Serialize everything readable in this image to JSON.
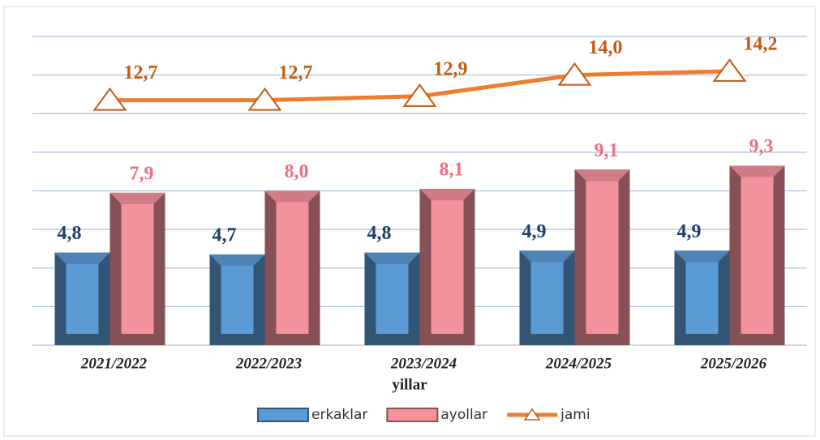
{
  "chart_data": {
    "type": "bar",
    "x_label": "yillar",
    "categories": [
      "2021/2022",
      "2022/2023",
      "2023/2024",
      "2024/2025",
      "2025/2026"
    ],
    "series": [
      {
        "name": "erkaklar",
        "type": "bar",
        "color": "#5b9bd5",
        "label_color": "#1f3e6b",
        "values": [
          4.8,
          4.7,
          4.8,
          4.9,
          4.9
        ],
        "value_labels": [
          "4,8",
          "4,7",
          "4,8",
          "4,9",
          "4,9"
        ]
      },
      {
        "name": "ayollar",
        "type": "bar",
        "color": "#f4929b",
        "label_color": "#f36f7f",
        "values": [
          7.9,
          8.0,
          8.1,
          9.1,
          9.3
        ],
        "value_labels": [
          "7,9",
          "8,0",
          "8,1",
          "9,1",
          "9,3"
        ]
      },
      {
        "name": "jami",
        "type": "line",
        "color": "#ed7d31",
        "label_color": "#c55a11",
        "values": [
          12.7,
          12.7,
          12.9,
          14.0,
          14.2
        ],
        "value_labels": [
          "12,7",
          "12,7",
          "12,9",
          "14,0",
          "14,2"
        ]
      }
    ],
    "ylim": [
      0,
      16
    ],
    "yticks": [
      0,
      2,
      4,
      6,
      8,
      10,
      12,
      14,
      16
    ],
    "grid": true,
    "legend": "bottom"
  }
}
